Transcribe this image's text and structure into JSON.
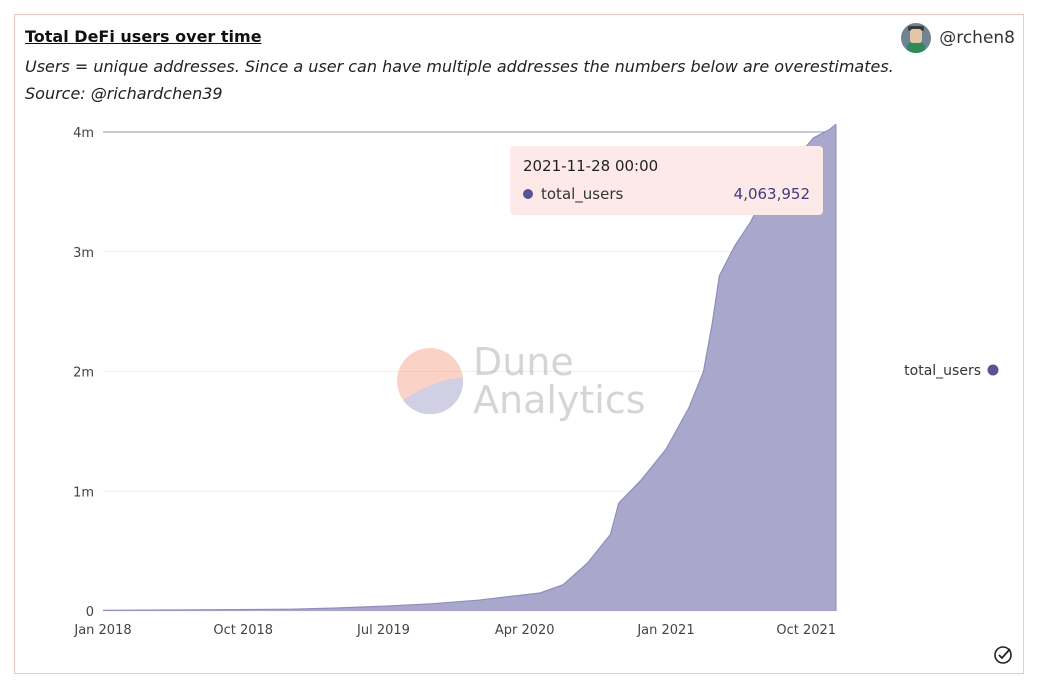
{
  "title": "Total DeFi users over time",
  "subtitle": "Users = unique addresses. Since a user can have multiple addresses the numbers below are overestimates.",
  "source": "Source: @richardchen39",
  "author": {
    "handle": "@rchen8",
    "avatar_icon": "user-avatar-icon"
  },
  "watermark": {
    "line1": "Dune",
    "line2": "Analytics"
  },
  "tooltip": {
    "date": "2021-11-28 00:00",
    "series": "total_users",
    "value": "4,063,952"
  },
  "legend": {
    "label": "total_users",
    "color": "#575394"
  },
  "colors": {
    "area_fill": "#a9a8cc",
    "area_stroke": "#8f8dbd",
    "accent": "#575394"
  },
  "chart_data": {
    "type": "area",
    "title": "Total DeFi users over time",
    "xlabel": "",
    "ylabel": "",
    "ylim": [
      0,
      4000000
    ],
    "xlim": [
      "2018-01-01",
      "2021-11-28"
    ],
    "grid": true,
    "legend_position": "right",
    "x_ticks": [
      "Jan 2018",
      "Oct 2018",
      "Jul 2019",
      "Apr 2020",
      "Jan 2021",
      "Oct 2021"
    ],
    "x_tick_dates": [
      "2018-01-01",
      "2018-10-01",
      "2019-07-01",
      "2020-04-01",
      "2021-01-01",
      "2021-10-01"
    ],
    "y_ticks": [
      0,
      1000000,
      2000000,
      3000000,
      4000000
    ],
    "y_tick_labels": [
      "0",
      "1m",
      "2m",
      "3m",
      "4m"
    ],
    "series": [
      {
        "name": "total_users",
        "x": [
          "2018-01-01",
          "2018-07-01",
          "2019-01-01",
          "2019-04-01",
          "2019-07-01",
          "2019-10-01",
          "2020-01-01",
          "2020-03-01",
          "2020-05-01",
          "2020-06-15",
          "2020-08-01",
          "2020-09-15",
          "2020-10-01",
          "2020-11-15",
          "2021-01-01",
          "2021-02-15",
          "2021-03-15",
          "2021-04-01",
          "2021-04-15",
          "2021-05-15",
          "2021-06-15",
          "2021-07-15",
          "2021-08-15",
          "2021-09-15",
          "2021-10-15",
          "2021-11-15",
          "2021-11-28"
        ],
        "y": [
          5000,
          10000,
          15000,
          25000,
          40000,
          60000,
          90000,
          120000,
          150000,
          220000,
          400000,
          640000,
          900000,
          1100000,
          1350000,
          1700000,
          2000000,
          2400000,
          2800000,
          3050000,
          3250000,
          3500000,
          3650000,
          3800000,
          3950000,
          4020000,
          4063952
        ]
      }
    ]
  }
}
